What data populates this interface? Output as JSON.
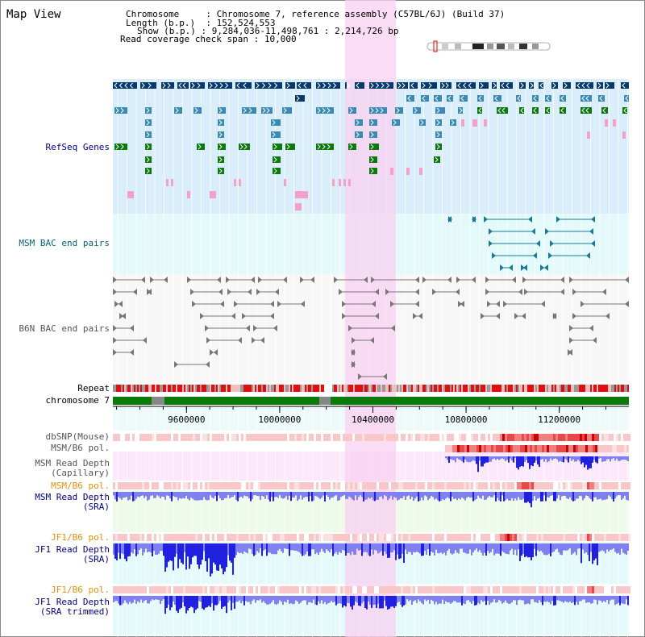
{
  "header": {
    "title": "Map View",
    "chromosome_label": "Chromosome",
    "chromosome_value": "Chromosome 7, reference assembly (C57BL/6J) (Build 37)",
    "length_label": "Length (b.p.)",
    "length_value": "152,524,553",
    "show_label": "Show (b.p.)",
    "show_value": "9,284,036-11,498,761 : 2,214,726 bp",
    "coverage_label": "Read coverage check span",
    "coverage_value": "10,000"
  },
  "axis": {
    "ticks": [
      "9600000",
      "10000000",
      "10400000",
      "10800000",
      "11200000"
    ],
    "tick_values": [
      9600000,
      10000000,
      10400000,
      10800000,
      11200000
    ],
    "range": [
      9284036,
      11498761
    ]
  },
  "tracks": {
    "refseq": "RefSeq Genes",
    "msm_bac": "MSM BAC end pairs",
    "b6n_bac": "B6N BAC end pairs",
    "repeat": "Repeat",
    "chromosome": "chromosome 7",
    "dbsnp": "dbSNP(Mouse)",
    "msm_pol_1": "MSM/B6 pol.",
    "msm_depth_cap_1": "MSM Read Depth",
    "msm_depth_cap_2": "(Capillary)",
    "msm_pol_2": "MSM/B6 pol.",
    "msm_depth_sra_1": "MSM Read Depth",
    "msm_depth_sra_2": "(SRA)",
    "jf1_pol_1": "JF1/B6 pol.",
    "jf1_depth_sra_1": "JF1 Read Depth",
    "jf1_depth_sra_2": "(SRA)",
    "jf1_pol_2": "JF1/B6 pol.",
    "jf1_depth_trim_1": "JF1 Read Depth",
    "jf1_depth_trim_2": "(SRA trimmed)"
  },
  "colors": {
    "label_blue": "#00008b",
    "label_teal": "#006680",
    "label_gray": "#555555",
    "label_orange": "#e6900a",
    "refseq_bg": "#d9eefa",
    "msm_bac_bg": "#e4fafa",
    "highlight": "#f8d0f0",
    "gene_dark": "#063a6e",
    "gene_mid": "#3a8ab8",
    "gene_green": "#0a7a0a",
    "gene_pink": "#f4a0c8",
    "chrom_green": "#0a7a0a",
    "depth_blue": "#3030e8"
  }
}
